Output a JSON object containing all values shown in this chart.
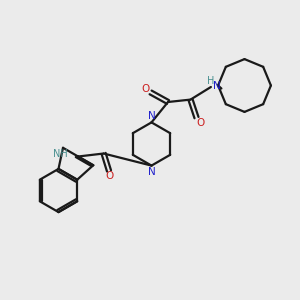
{
  "background_color": "#ebebeb",
  "bond_color": "#1a1a1a",
  "nitrogen_color": "#2020cc",
  "oxygen_color": "#cc2020",
  "nh_color": "#4a9090",
  "line_width": 1.6,
  "figsize": [
    3.0,
    3.0
  ],
  "dpi": 100,
  "xlim": [
    0,
    10
  ],
  "ylim": [
    0,
    10
  ]
}
